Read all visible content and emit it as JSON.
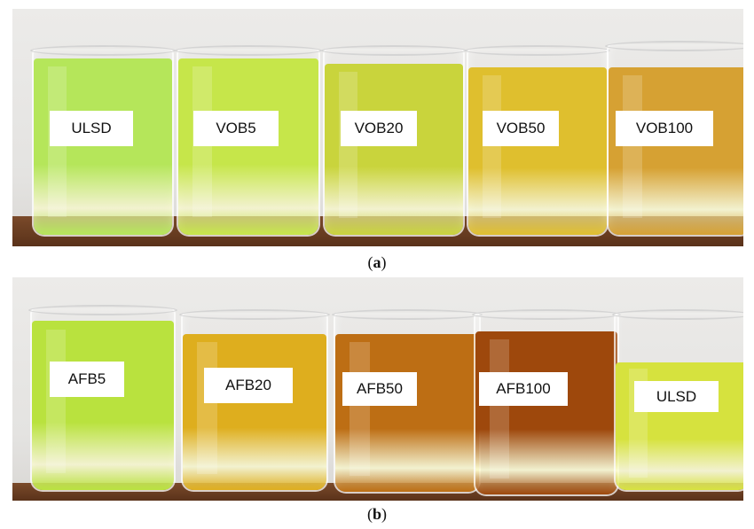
{
  "panels": [
    {
      "caption_open": "(",
      "caption_letter": "a",
      "caption_close": ")",
      "beakers": [
        {
          "label": "ULSD",
          "color": "#b5e65a"
        },
        {
          "label": "VOB5",
          "color": "#c6e64a"
        },
        {
          "label": "VOB20",
          "color": "#c9d43c"
        },
        {
          "label": "VOB50",
          "color": "#dfbf2e"
        },
        {
          "label": "VOB100",
          "color": "#d6a133"
        }
      ]
    },
    {
      "caption_open": "(",
      "caption_letter": "b",
      "caption_close": ")",
      "beakers": [
        {
          "label": "AFB5",
          "color": "#b9e23e"
        },
        {
          "label": "AFB20",
          "color": "#deae1e"
        },
        {
          "label": "AFB50",
          "color": "#bd6e14"
        },
        {
          "label": "AFB100",
          "color": "#9e480c"
        },
        {
          "label": "ULSD",
          "color": "#d6e23e"
        }
      ]
    }
  ]
}
